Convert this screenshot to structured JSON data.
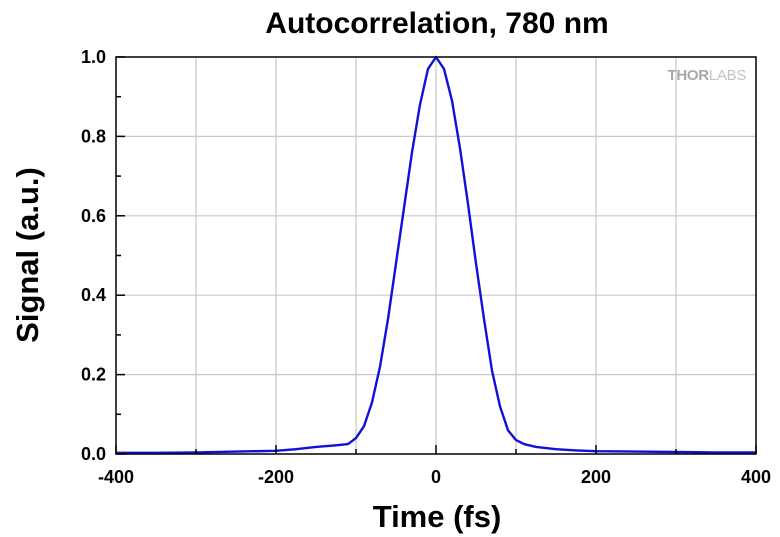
{
  "chart_data": {
    "type": "line",
    "title": "Autocorrelation, 780 nm",
    "xlabel": "Time (fs)",
    "ylabel": "Signal (a.u.)",
    "xlim": [
      -400,
      400
    ],
    "ylim": [
      0,
      1.0
    ],
    "xticks": [
      -400,
      -200,
      0,
      200,
      400
    ],
    "xtick_labels": [
      "-400",
      "-200",
      "0",
      "200",
      "400"
    ],
    "yticks": [
      0.0,
      0.2,
      0.4,
      0.6,
      0.8,
      1.0
    ],
    "ytick_labels": [
      "0.0",
      "0.2",
      "0.4",
      "0.6",
      "0.8",
      "1.0"
    ],
    "grid": true,
    "series": [
      {
        "color": "#1010d8",
        "x": [
          -400,
          -350,
          -300,
          -250,
          -200,
          -175,
          -150,
          -125,
          -110,
          -100,
          -90,
          -80,
          -70,
          -60,
          -50,
          -40,
          -30,
          -20,
          -10,
          0,
          10,
          20,
          30,
          40,
          50,
          60,
          70,
          80,
          90,
          100,
          110,
          125,
          150,
          175,
          200,
          250,
          300,
          350,
          400
        ],
        "y": [
          0.003,
          0.003,
          0.004,
          0.006,
          0.008,
          0.012,
          0.018,
          0.022,
          0.025,
          0.04,
          0.07,
          0.13,
          0.22,
          0.34,
          0.48,
          0.62,
          0.76,
          0.88,
          0.97,
          1.0,
          0.97,
          0.89,
          0.77,
          0.63,
          0.48,
          0.34,
          0.21,
          0.12,
          0.06,
          0.035,
          0.025,
          0.018,
          0.012,
          0.009,
          0.007,
          0.006,
          0.005,
          0.004,
          0.004
        ]
      }
    ]
  },
  "watermark": {
    "main": "THOR",
    "sub": "LABS"
  }
}
